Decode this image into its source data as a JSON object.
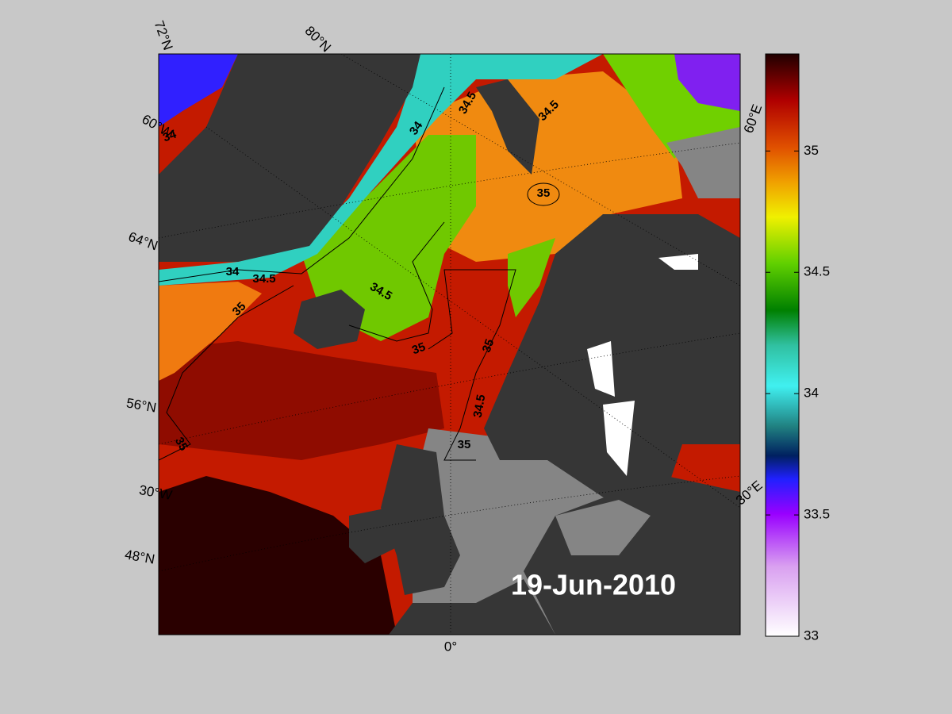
{
  "map": {
    "date_label": "19-Jun-2010",
    "colorbar": {
      "lim": [
        33,
        35.4
      ],
      "ticks": [
        33,
        33.5,
        34,
        34.5,
        35
      ]
    },
    "graticule_labels": [
      "72°N",
      "80°N",
      "60°W",
      "64°N",
      "56°N",
      "30°W",
      "48°N",
      "0°",
      "30°E",
      "60°E"
    ],
    "contour_labels": [
      34,
      34.5,
      34,
      34.5,
      35,
      34,
      34.5,
      34.5,
      35,
      35,
      35,
      34.5,
      35,
      35
    ]
  }
}
